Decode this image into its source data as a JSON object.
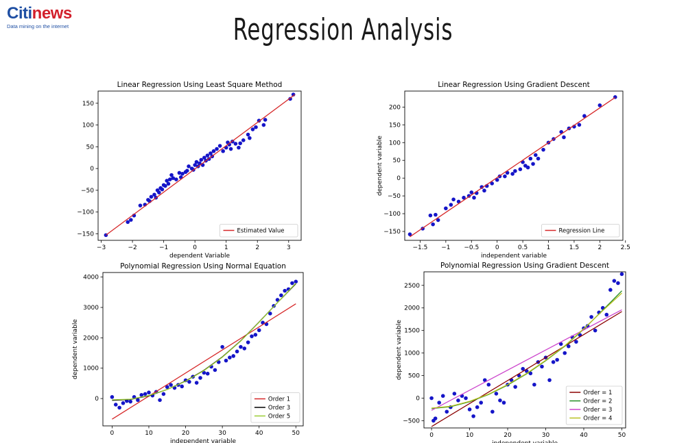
{
  "logo": {
    "brand_citi": "Citi",
    "brand_news": "news",
    "tagline": "Data mining on the internet"
  },
  "page_title": "Regression Analysis",
  "chart_data": [
    {
      "type": "scatter",
      "title": "Linear Regression Using Least Square Method",
      "xlabel": "dependent Variable",
      "ylabel": "",
      "xlim": [
        -3.1,
        3.4
      ],
      "ylim": [
        -165,
        178
      ],
      "xticks": [
        -3,
        -2,
        -1,
        0,
        1,
        2,
        3
      ],
      "yticks": [
        -150,
        -100,
        -50,
        0,
        50,
        100,
        150
      ],
      "legend": {
        "placement": "lower-right",
        "entries": [
          {
            "label": "Estimated Value",
            "color": "#d62728"
          }
        ]
      },
      "lines": [
        {
          "name": "Estimated Value",
          "color": "#d62728",
          "x": [
            -2.85,
            3.2
          ],
          "y": [
            -153,
            170
          ]
        }
      ],
      "points": {
        "color": "#1515c8",
        "x": [
          -2.85,
          -2.15,
          -2.05,
          -1.95,
          -1.75,
          -1.6,
          -1.5,
          -1.45,
          -1.4,
          -1.3,
          -1.25,
          -1.2,
          -1.15,
          -1.1,
          -1.05,
          -1.0,
          -0.95,
          -0.9,
          -0.85,
          -0.8,
          -0.75,
          -0.7,
          -0.6,
          -0.5,
          -0.45,
          -0.4,
          -0.3,
          -0.25,
          -0.2,
          -0.1,
          -0.05,
          0.0,
          0.05,
          0.1,
          0.15,
          0.2,
          0.25,
          0.3,
          0.35,
          0.4,
          0.45,
          0.5,
          0.55,
          0.6,
          0.7,
          0.8,
          0.9,
          1.0,
          1.05,
          1.1,
          1.15,
          1.2,
          1.3,
          1.4,
          1.45,
          1.55,
          1.7,
          1.75,
          1.85,
          1.95,
          2.05,
          2.2,
          2.25,
          3.05,
          3.15
        ],
        "y": [
          -153,
          -123,
          -118,
          -108,
          -85,
          -83,
          -72,
          -75,
          -65,
          -60,
          -67,
          -50,
          -55,
          -45,
          -48,
          -38,
          -40,
          -28,
          -35,
          -25,
          -15,
          -22,
          -25,
          -10,
          -20,
          -12,
          -8,
          -5,
          5,
          0,
          -3,
          8,
          15,
          5,
          12,
          20,
          8,
          25,
          18,
          30,
          22,
          35,
          28,
          40,
          45,
          52,
          40,
          48,
          60,
          55,
          45,
          62,
          57,
          48,
          58,
          65,
          78,
          70,
          90,
          95,
          110,
          100,
          112,
          160,
          170
        ]
      }
    },
    {
      "type": "scatter",
      "title": "Linear Regression Using Gradient Descent",
      "xlabel": "independent variable",
      "ylabel": "dependent variable",
      "xlim": [
        -1.8,
        2.45
      ],
      "ylim": [
        -175,
        245
      ],
      "xticks": [
        -1.5,
        -1.0,
        -0.5,
        0.0,
        0.5,
        1.0,
        1.5,
        2.0,
        2.5
      ],
      "yticks": [
        -150,
        -100,
        -50,
        0,
        50,
        100,
        150,
        200
      ],
      "legend": {
        "placement": "lower-right",
        "entries": [
          {
            "label": "Regression Line",
            "color": "#d62728"
          }
        ]
      },
      "lines": [
        {
          "name": "Regression Line",
          "color": "#d62728",
          "x": [
            -1.7,
            2.3
          ],
          "y": [
            -165,
            227
          ]
        }
      ],
      "points": {
        "color": "#1515c8",
        "x": [
          -1.7,
          -1.45,
          -1.3,
          -1.25,
          -1.2,
          -1.15,
          -1.0,
          -0.9,
          -0.85,
          -0.75,
          -0.65,
          -0.55,
          -0.5,
          -0.45,
          -0.4,
          -0.3,
          -0.25,
          -0.2,
          -0.1,
          0.0,
          0.05,
          0.15,
          0.2,
          0.3,
          0.35,
          0.45,
          0.5,
          0.55,
          0.6,
          0.65,
          0.7,
          0.75,
          0.8,
          0.9,
          1.0,
          1.1,
          1.25,
          1.3,
          1.4,
          1.5,
          1.6,
          1.7,
          2.0,
          2.3
        ],
        "y": [
          -158,
          -142,
          -105,
          -130,
          -103,
          -118,
          -85,
          -75,
          -60,
          -66,
          -55,
          -50,
          -40,
          -55,
          -42,
          -25,
          -35,
          -22,
          -15,
          -5,
          5,
          5,
          15,
          12,
          20,
          25,
          45,
          35,
          30,
          55,
          40,
          65,
          55,
          80,
          100,
          110,
          130,
          115,
          140,
          145,
          150,
          175,
          205,
          228
        ]
      }
    },
    {
      "type": "scatter",
      "title": "Polynomial Regression Using Normal Equation",
      "xlabel": "independent variable",
      "ylabel": "dependent variable",
      "xlim": [
        -2.5,
        52
      ],
      "ylim": [
        -900,
        4150
      ],
      "xticks": [
        0,
        10,
        20,
        30,
        40,
        50
      ],
      "yticks": [
        0,
        1000,
        2000,
        3000,
        4000
      ],
      "legend": {
        "placement": "lower-right",
        "entries": [
          {
            "label": "Order 1",
            "color": "#d62728"
          },
          {
            "label": "Order 3",
            "color": "#000000"
          },
          {
            "label": "Order 5",
            "color": "#9acd32"
          }
        ]
      },
      "lines": [
        {
          "name": "Order 1",
          "color": "#d62728",
          "x": [
            0,
            50
          ],
          "y": [
            -680,
            3120
          ]
        },
        {
          "name": "Order 3",
          "color": "#000000",
          "x": [
            0,
            5,
            10,
            15,
            20,
            25,
            30,
            35,
            40,
            45,
            50
          ],
          "y": [
            -60,
            -30,
            90,
            300,
            580,
            930,
            1370,
            1900,
            2520,
            3160,
            3780
          ]
        },
        {
          "name": "Order 5",
          "color": "#9acd32",
          "x": [
            0,
            5,
            10,
            15,
            20,
            25,
            30,
            35,
            40,
            45,
            50
          ],
          "y": [
            -40,
            -20,
            100,
            300,
            570,
            920,
            1360,
            1890,
            2510,
            3160,
            3800
          ]
        }
      ],
      "points": {
        "color": "#1515c8",
        "x": [
          0,
          1,
          2,
          3,
          4,
          5,
          6,
          7,
          8,
          9,
          10,
          11,
          12,
          13,
          14,
          15,
          16,
          17,
          18,
          19,
          20,
          21,
          22,
          23,
          24,
          25,
          26,
          27,
          28,
          29,
          30,
          31,
          32,
          33,
          34,
          35,
          36,
          37,
          38,
          39,
          40,
          41,
          42,
          43,
          44,
          45,
          46,
          47,
          48,
          49,
          50
        ],
        "y": [
          50,
          -200,
          -300,
          -150,
          -80,
          -100,
          50,
          -50,
          120,
          150,
          200,
          100,
          220,
          -50,
          150,
          380,
          450,
          350,
          450,
          400,
          600,
          550,
          720,
          520,
          680,
          850,
          820,
          1050,
          940,
          1200,
          1700,
          1250,
          1350,
          1400,
          1550,
          1700,
          1650,
          1850,
          2050,
          2100,
          2250,
          2500,
          2450,
          2800,
          3050,
          3250,
          3400,
          3550,
          3600,
          3800,
          3850
        ]
      }
    },
    {
      "type": "scatter",
      "title": "Polynomial Regression Using Gradient Descent",
      "xlabel": "independent variable",
      "ylabel": "dependent variable",
      "xlim": [
        -2,
        51
      ],
      "ylim": [
        -660,
        2800
      ],
      "xticks": [
        0,
        10,
        20,
        30,
        40,
        50
      ],
      "yticks": [
        -500,
        0,
        500,
        1000,
        1500,
        2000,
        2500
      ],
      "legend": {
        "placement": "lower-right",
        "entries": [
          {
            "label": "Order = 1",
            "color": "#8b0000"
          },
          {
            "label": "Order = 2",
            "color": "#228b22"
          },
          {
            "label": "Order = 3",
            "color": "#cc44cc"
          },
          {
            "label": "Order = 4",
            "color": "#b8c020"
          }
        ]
      },
      "lines": [
        {
          "name": "Order = 1",
          "color": "#8b0000",
          "x": [
            0,
            50
          ],
          "y": [
            -630,
            1920
          ]
        },
        {
          "name": "Order = 2",
          "color": "#228b22",
          "x": [
            0,
            5,
            10,
            15,
            20,
            25,
            30,
            35,
            40,
            45,
            50
          ],
          "y": [
            -230,
            -190,
            -80,
            80,
            290,
            540,
            830,
            1150,
            1530,
            1950,
            2380
          ]
        },
        {
          "name": "Order = 3",
          "color": "#cc44cc",
          "x": [
            0,
            50
          ],
          "y": [
            -270,
            1960
          ]
        },
        {
          "name": "Order = 4",
          "color": "#b8c020",
          "x": [
            0,
            5,
            10,
            15,
            20,
            25,
            30,
            35,
            40,
            45,
            50
          ],
          "y": [
            -220,
            -180,
            -70,
            90,
            300,
            550,
            840,
            1160,
            1540,
            1940,
            2330
          ]
        }
      ],
      "points": {
        "color": "#1515c8",
        "x": [
          0,
          0.5,
          1,
          2,
          3,
          4,
          5,
          6,
          7,
          8,
          9,
          10,
          11,
          12,
          13,
          14,
          15,
          16,
          17,
          18,
          19,
          20,
          21,
          22,
          23,
          24,
          25,
          26,
          27,
          28,
          29,
          30,
          31,
          32,
          33,
          34,
          35,
          36,
          37,
          38,
          39,
          40,
          41,
          42,
          43,
          44,
          45,
          46,
          47,
          48,
          49,
          50
        ],
        "y": [
          0,
          -500,
          -450,
          -100,
          50,
          -300,
          -200,
          100,
          -50,
          50,
          0,
          -250,
          -400,
          -200,
          -100,
          400,
          300,
          -300,
          100,
          -50,
          -100,
          300,
          400,
          250,
          500,
          650,
          600,
          550,
          300,
          800,
          700,
          900,
          400,
          800,
          850,
          1200,
          1000,
          1150,
          1350,
          1250,
          1400,
          1550,
          1600,
          1800,
          1500,
          1900,
          2000,
          1850,
          2400,
          2600,
          2550,
          2750
        ]
      }
    }
  ]
}
